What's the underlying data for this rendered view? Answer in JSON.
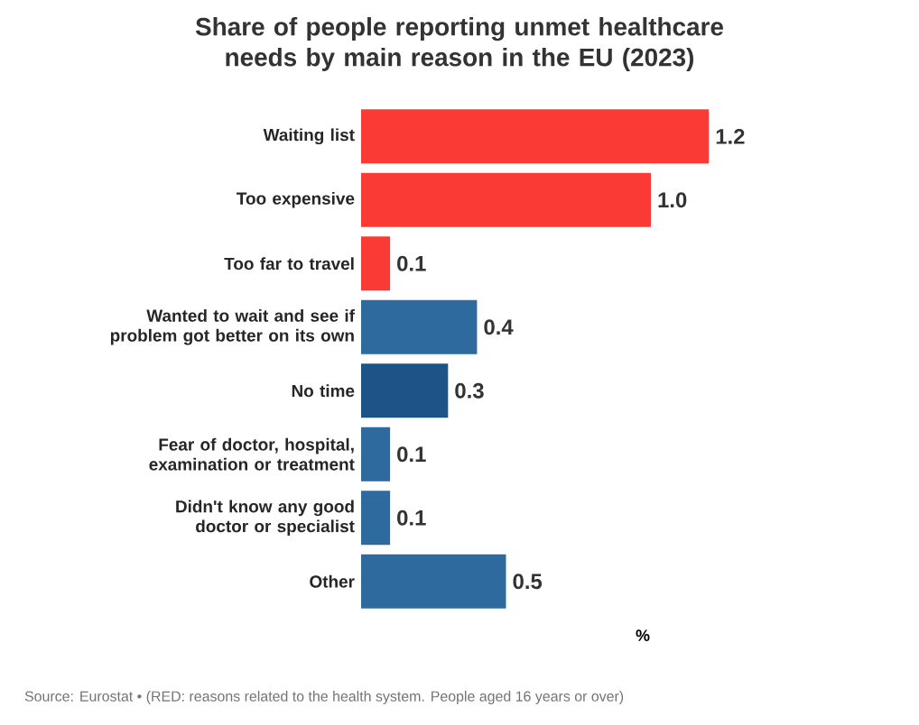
{
  "chart_data": {
    "type": "bar",
    "orientation": "horizontal",
    "title": "Share of people reporting unmet healthcare needs by main reason in the EU (2023)",
    "xlabel": "%",
    "categories": [
      "Waiting list",
      "Too expensive",
      "Too far to travel",
      "Wanted to wait and see if problem got better on its own",
      "No time",
      "Fear of doctor, hospital, examination or treatment",
      "Didn't know any good doctor or specialist",
      "Other"
    ],
    "values": [
      1.2,
      1.0,
      0.1,
      0.4,
      0.3,
      0.1,
      0.1,
      0.5
    ],
    "colors": [
      "#f93a35",
      "#f93a35",
      "#f93a35",
      "#2f6a9f",
      "#1c5488",
      "#2f6a9f",
      "#2f6a9f",
      "#2f6a9f"
    ],
    "value_labels": [
      "1.2",
      "1.0",
      "0.1",
      "0.4",
      "0.3",
      "0.1",
      "0.1",
      "0.5"
    ],
    "annotations": [
      "Source: Eurostat • (RED: reasons related to the health system. People aged 16 years or over)"
    ]
  }
}
